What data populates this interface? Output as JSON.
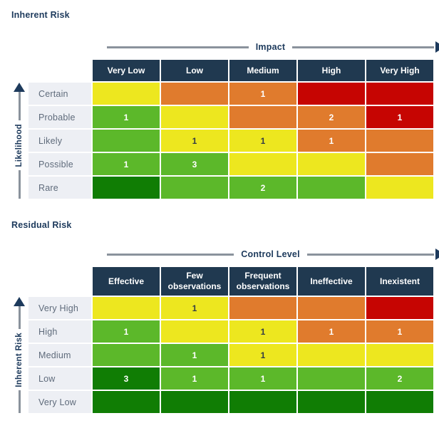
{
  "colors": {
    "navy": "#203950",
    "text_navy": "#1d3a5c",
    "yellow": "#ede71f",
    "orange": "#e07b2d",
    "red": "#c60502",
    "green": "#5cb82a",
    "dark_green": "#107d04",
    "label_bg": "#edeff4",
    "label_text": "#5f6b7b",
    "axis_line": "#8a929c",
    "cell_number_light": "#ffffff",
    "cell_number_dark": "#333c44"
  },
  "chart_data": [
    {
      "type": "heatmap",
      "title": "Inherent Risk",
      "x_axis": {
        "label": "Impact",
        "categories": [
          "Very Low",
          "Low",
          "Medium",
          "High",
          "Very High"
        ]
      },
      "y_axis": {
        "label": "Likelihood",
        "categories": [
          "Certain",
          "Probable",
          "Likely",
          "Possible",
          "Rare"
        ]
      },
      "cell_colors": [
        [
          "yellow",
          "orange",
          "orange",
          "red",
          "red"
        ],
        [
          "green",
          "yellow",
          "orange",
          "orange",
          "red"
        ],
        [
          "green",
          "yellow",
          "yellow",
          "orange",
          "orange"
        ],
        [
          "green",
          "green",
          "yellow",
          "yellow",
          "orange"
        ],
        [
          "dark_green",
          "green",
          "green",
          "green",
          "yellow"
        ]
      ],
      "cell_values": [
        [
          "",
          "",
          "1",
          "",
          ""
        ],
        [
          "1",
          "",
          "",
          "2",
          "1"
        ],
        [
          "",
          "1",
          "1",
          "1",
          ""
        ],
        [
          "1",
          "3",
          "",
          "",
          ""
        ],
        [
          "",
          "",
          "2",
          "",
          ""
        ]
      ]
    },
    {
      "type": "heatmap",
      "title": "Residual Risk",
      "x_axis": {
        "label": "Control Level",
        "categories": [
          "Effective",
          "Few observations",
          "Frequent observations",
          "Ineffective",
          "Inexistent"
        ]
      },
      "y_axis": {
        "label": "Inherent Risk",
        "categories": [
          "Very High",
          "High",
          "Medium",
          "Low",
          "Very Low"
        ]
      },
      "cell_colors": [
        [
          "yellow",
          "yellow",
          "orange",
          "orange",
          "red"
        ],
        [
          "green",
          "yellow",
          "yellow",
          "orange",
          "orange"
        ],
        [
          "green",
          "green",
          "yellow",
          "yellow",
          "yellow"
        ],
        [
          "dark_green",
          "green",
          "green",
          "green",
          "green"
        ],
        [
          "dark_green",
          "dark_green",
          "dark_green",
          "dark_green",
          "dark_green"
        ]
      ],
      "cell_values": [
        [
          "",
          "1",
          "",
          "",
          ""
        ],
        [
          "1",
          "",
          "1",
          "1",
          "1"
        ],
        [
          "",
          "1",
          "1",
          "",
          ""
        ],
        [
          "3",
          "1",
          "1",
          "",
          "2"
        ],
        [
          "",
          "",
          "",
          "",
          ""
        ]
      ]
    }
  ]
}
